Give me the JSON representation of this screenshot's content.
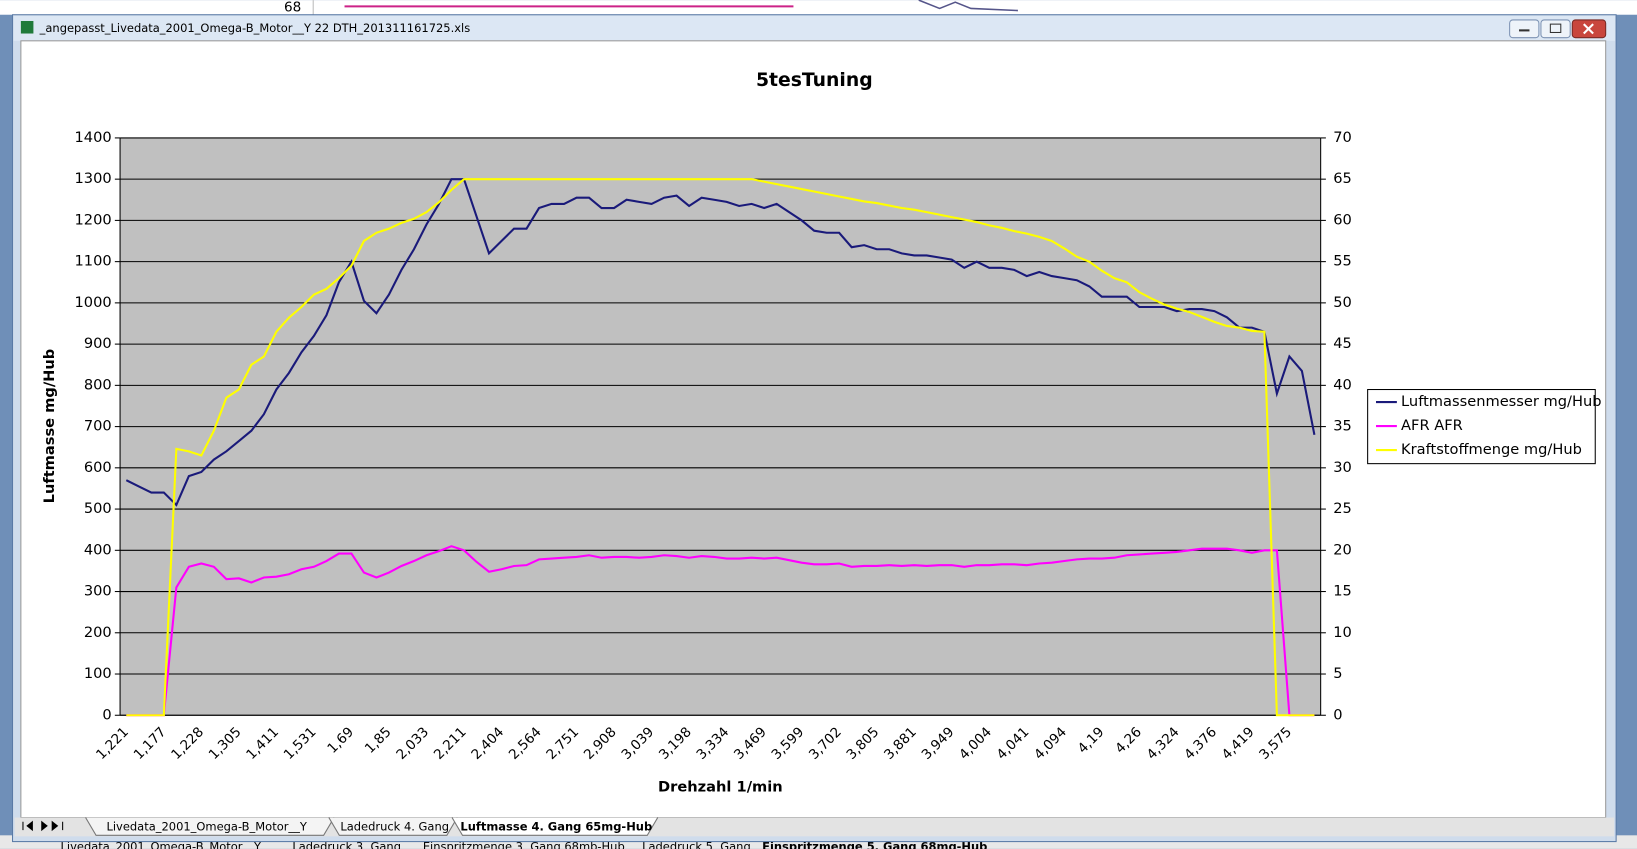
{
  "window": {
    "title": "_angepasst_Livedata_2001_Omega-B_Motor__Y 22 DTH_201311161725.xls",
    "back_cell": "68",
    "back_tabs": [
      "Livedata_2001_Omega-B_Motor__Y",
      "Ladedruck 3. Gang",
      "Einspritzmenge 3. Gang 68mb-Hub",
      "Ladedruck 5. Gang",
      "Einspritzmenge 5. Gang 68mg-Hub"
    ]
  },
  "sheet_tabs": [
    "Livedata_2001_Omega-B_Motor__Y",
    "Ladedruck 4. Gang",
    "Luftmasse 4. Gang 65mg-Hub"
  ],
  "chart_data": {
    "type": "line",
    "title": "5tesTuning",
    "x_label": "Drehzahl 1/min",
    "y_label": "Luftmasse mg/Hub",
    "categories": [
      "1,221",
      null,
      null,
      "1,177",
      null,
      null,
      "1,228",
      null,
      null,
      "1,305",
      null,
      null,
      "1,411",
      null,
      null,
      "1,531",
      null,
      null,
      "1,69",
      null,
      null,
      "1,85",
      null,
      null,
      "2,033",
      null,
      null,
      "2,211",
      null,
      null,
      "2,404",
      null,
      null,
      "2,564",
      null,
      null,
      "2,751",
      null,
      null,
      "2,908",
      null,
      null,
      "3,039",
      null,
      null,
      "3,198",
      null,
      null,
      "3,334",
      null,
      null,
      "3,469",
      null,
      null,
      "3,599",
      null,
      null,
      "3,702",
      null,
      null,
      "3,805",
      null,
      null,
      "3,881",
      null,
      null,
      "3,949",
      null,
      null,
      "4,004",
      null,
      null,
      "4,041",
      null,
      null,
      "4,094",
      null,
      null,
      "4,19",
      null,
      null,
      "4,26",
      null,
      null,
      "4,324",
      null,
      null,
      "4,376",
      null,
      null,
      "4,419",
      null,
      null,
      "3,575",
      null,
      null
    ],
    "series": [
      {
        "name": "Luftmassenmesser mg/Hub",
        "color": "#1a1a7a",
        "axis": "y",
        "values": [
          570,
          555,
          540,
          540,
          510,
          580,
          590,
          620,
          640,
          665,
          690,
          730,
          790,
          830,
          880,
          920,
          970,
          1050,
          1100,
          1005,
          975,
          1020,
          1080,
          1130,
          1190,
          1240,
          1300,
          1300,
          1210,
          1120,
          1150,
          1180,
          1180,
          1230,
          1240,
          1240,
          1255,
          1255,
          1230,
          1230,
          1250,
          1245,
          1240,
          1255,
          1260,
          1235,
          1255,
          1250,
          1245,
          1235,
          1240,
          1230,
          1240,
          1220,
          1200,
          1175,
          1170,
          1170,
          1135,
          1140,
          1130,
          1130,
          1120,
          1115,
          1115,
          1110,
          1105,
          1085,
          1100,
          1085,
          1085,
          1080,
          1065,
          1075,
          1065,
          1060,
          1055,
          1040,
          1015,
          1015,
          1015,
          990,
          990,
          990,
          980,
          985,
          985,
          980,
          965,
          940,
          940,
          930,
          780,
          870,
          835,
          680
        ]
      },
      {
        "name": "AFR AFR",
        "color": "#ff00ff",
        "axis": "y2",
        "values": [
          0,
          0,
          0,
          0,
          15.5,
          18,
          18.4,
          18,
          16.5,
          16.6,
          16.1,
          16.7,
          16.8,
          17.1,
          17.7,
          18,
          18.7,
          19.6,
          19.6,
          17.3,
          16.7,
          17.3,
          18.1,
          18.7,
          19.4,
          19.9,
          20.5,
          20,
          18.6,
          17.4,
          17.7,
          18.1,
          18.2,
          18.9,
          19,
          19.1,
          19.2,
          19.4,
          19.1,
          19.2,
          19.2,
          19.1,
          19.2,
          19.4,
          19.3,
          19.1,
          19.3,
          19.2,
          19,
          19,
          19.1,
          19,
          19.1,
          18.8,
          18.5,
          18.3,
          18.3,
          18.4,
          18,
          18.1,
          18.1,
          18.2,
          18.1,
          18.2,
          18.1,
          18.2,
          18.2,
          18,
          18.2,
          18.2,
          18.3,
          18.3,
          18.2,
          18.4,
          18.5,
          18.7,
          18.9,
          19,
          19,
          19.1,
          19.4,
          19.5,
          19.6,
          19.7,
          19.8,
          20,
          20.2,
          20.2,
          20.2,
          20,
          19.7,
          20,
          20,
          0,
          0,
          0
        ]
      },
      {
        "name": "Kraftstoffmenge mg/Hub",
        "color": "#ffff00",
        "axis": "y2",
        "values": [
          0,
          0,
          0,
          0,
          32.3,
          32,
          31.5,
          34.5,
          38.5,
          39.5,
          42.5,
          43.5,
          46.5,
          48.2,
          49.5,
          51,
          51.7,
          53,
          54.5,
          57.5,
          58.5,
          59,
          59.7,
          60.2,
          61,
          62.2,
          63.7,
          65,
          65,
          65,
          65,
          65,
          65,
          65,
          65,
          65,
          65,
          65,
          65,
          65,
          65,
          65,
          65,
          65,
          65,
          65,
          65,
          65,
          65,
          65,
          65,
          64.7,
          64.4,
          64.1,
          63.8,
          63.5,
          63.2,
          62.9,
          62.6,
          62.3,
          62.1,
          61.8,
          61.5,
          61.3,
          61,
          60.7,
          60.4,
          60.1,
          59.8,
          59.4,
          59.1,
          58.7,
          58.4,
          58,
          57.5,
          56.6,
          55.6,
          55,
          53.9,
          53,
          52.5,
          51.3,
          50.5,
          49.8,
          49.3,
          48.9,
          48.3,
          47.7,
          47.2,
          47,
          46.6,
          46.5,
          0,
          0,
          0,
          0
        ]
      }
    ],
    "ylim": [
      0,
      1400
    ],
    "yticks": [
      0,
      100,
      200,
      300,
      400,
      500,
      600,
      700,
      800,
      900,
      1000,
      1100,
      1200,
      1300,
      1400
    ],
    "y2lim": [
      0,
      70
    ],
    "y2ticks": [
      0,
      5,
      10,
      15,
      20,
      25,
      30,
      35,
      40,
      45,
      50,
      55,
      60,
      65,
      70
    ],
    "grid": true,
    "legend": "right"
  }
}
